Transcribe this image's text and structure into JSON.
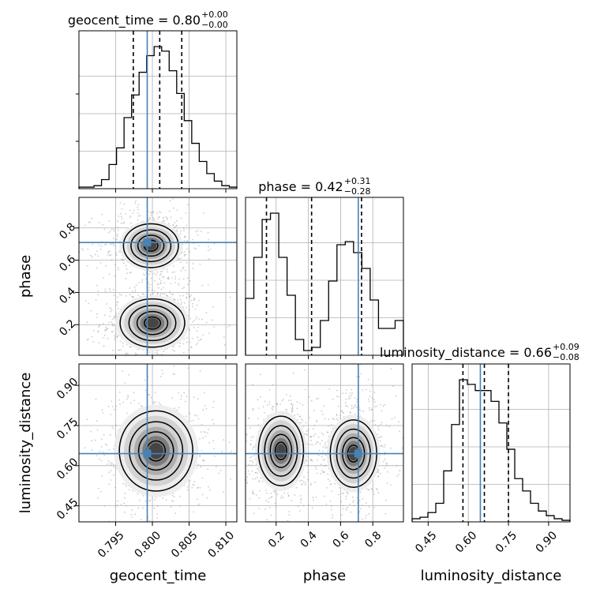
{
  "chart_data": {
    "type": "corner",
    "parameters": [
      "geocent_time",
      "phase",
      "luminosity_distance"
    ],
    "titles": [
      {
        "name": "geocent_time",
        "value": "0.80",
        "plus": "+0.00",
        "minus": "−0.00"
      },
      {
        "name": "phase",
        "value": "0.42",
        "plus": "+0.31",
        "minus": "−0.28"
      },
      {
        "name": "luminosity_distance",
        "value": "0.66",
        "plus": "+0.09",
        "minus": "−0.08"
      }
    ],
    "axes": {
      "geocent_time": {
        "range": [
          0.79,
          0.8115
        ],
        "ticks": [
          "0.795",
          "0.800",
          "0.805",
          "0.810"
        ]
      },
      "phase": {
        "range": [
          0.01,
          0.99
        ],
        "ticks": [
          "0.2",
          "0.4",
          "0.6",
          "0.8"
        ]
      },
      "luminosity_distance": {
        "range": [
          0.39,
          0.98
        ],
        "ticks": [
          "0.45",
          "0.60",
          "0.75",
          "0.90"
        ]
      }
    },
    "truths": {
      "geocent_time": 0.7993,
      "phase": 0.71,
      "luminosity_distance": 0.645
    },
    "quantiles": {
      "geocent_time": [
        0.7974,
        0.801,
        0.804
      ],
      "phase": [
        0.14,
        0.42,
        0.73
      ],
      "luminosity_distance": [
        0.58,
        0.66,
        0.75
      ]
    },
    "hist_1d": {
      "geocent_time": [
        0.01,
        0.01,
        0.02,
        0.06,
        0.16,
        0.27,
        0.47,
        0.62,
        0.77,
        0.88,
        0.94,
        0.91,
        0.78,
        0.63,
        0.45,
        0.3,
        0.18,
        0.1,
        0.05,
        0.02,
        0.01
      ],
      "phase": [
        0.36,
        0.62,
        0.86,
        0.9,
        0.62,
        0.38,
        0.1,
        0.03,
        0.05,
        0.22,
        0.47,
        0.7,
        0.72,
        0.65,
        0.55,
        0.35,
        0.17,
        0.17,
        0.22
      ],
      "luminosity_distance": [
        0.02,
        0.03,
        0.06,
        0.12,
        0.33,
        0.63,
        0.92,
        0.89,
        0.85,
        0.85,
        0.78,
        0.64,
        0.47,
        0.28,
        0.2,
        0.12,
        0.07,
        0.04,
        0.02,
        0.01
      ]
    },
    "joint_modes": {
      "geocent_time__phase": [
        {
          "x": 0.8,
          "y": 0.21,
          "sx": 0.0022,
          "sy": 0.075,
          "w": 1.0
        },
        {
          "x": 0.7998,
          "y": 0.69,
          "sx": 0.0022,
          "sy": 0.08,
          "w": 0.85
        }
      ],
      "geocent_time__luminosity_distance": [
        {
          "x": 0.8005,
          "y": 0.655,
          "sx": 0.0025,
          "sy": 0.075,
          "w": 1.0
        }
      ],
      "phase__luminosity_distance": [
        {
          "x": 0.23,
          "y": 0.655,
          "sx": 0.07,
          "sy": 0.065,
          "w": 1.0
        },
        {
          "x": 0.68,
          "y": 0.645,
          "sx": 0.08,
          "sy": 0.07,
          "w": 0.9
        }
      ]
    },
    "grid": true,
    "colors": {
      "truth": "#4682b4",
      "line": "#000000",
      "grid": "#b0b0b0"
    }
  }
}
